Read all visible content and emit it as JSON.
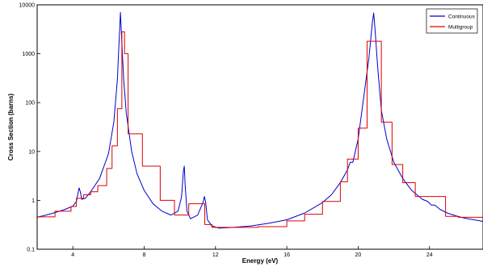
{
  "chart_data": {
    "type": "line",
    "xlabel": "Energy (eV)",
    "ylabel": "Cross Section (barns)",
    "xlim": [
      2,
      27
    ],
    "ylim": [
      0.1,
      10000
    ],
    "yscale": "log",
    "x_ticks": [
      4,
      8,
      12,
      16,
      20,
      24
    ],
    "x_tick_labels": [
      "4",
      "8",
      "12",
      "16",
      "20",
      "24"
    ],
    "y_ticks": [
      0.1,
      1,
      10,
      100,
      1000,
      10000
    ],
    "y_tick_labels": [
      "0.1",
      "1",
      "10",
      "100",
      "1000",
      "10000"
    ],
    "grid": false,
    "legend_position": "top-right",
    "series": [
      {
        "name": "Continuous",
        "color": "#0000cc",
        "style": "line",
        "x": [
          2.0,
          2.5,
          3.0,
          3.5,
          4.0,
          4.2,
          4.35,
          4.42,
          4.5,
          4.7,
          5.0,
          5.5,
          6.0,
          6.3,
          6.5,
          6.6,
          6.67,
          6.74,
          6.85,
          7.0,
          7.3,
          7.6,
          8.0,
          8.5,
          9.0,
          9.5,
          9.9,
          10.1,
          10.2,
          10.25,
          10.3,
          10.4,
          10.6,
          11.0,
          11.3,
          11.38,
          11.45,
          11.55,
          11.8,
          12.2,
          13.0,
          14.0,
          15.0,
          16.0,
          17.0,
          18.0,
          18.5,
          19.0,
          19.4,
          19.55,
          19.7,
          20.0,
          20.3,
          20.6,
          20.8,
          20.87,
          20.95,
          21.1,
          21.3,
          21.6,
          22.0,
          22.5,
          23.0,
          23.6,
          23.9,
          24.1,
          24.3,
          24.6,
          25.0,
          25.5,
          26.0,
          26.5,
          27.0
        ],
        "y": [
          0.45,
          0.5,
          0.56,
          0.64,
          0.76,
          0.95,
          1.8,
          1.5,
          1.05,
          1.1,
          1.5,
          2.8,
          9.0,
          40.0,
          300.0,
          2000.0,
          7000.0,
          2000.0,
          300.0,
          60.0,
          10.0,
          3.5,
          1.6,
          0.85,
          0.6,
          0.5,
          0.6,
          1.2,
          4.0,
          5.0,
          2.0,
          0.6,
          0.42,
          0.5,
          0.9,
          1.2,
          0.9,
          0.4,
          0.3,
          0.27,
          0.28,
          0.3,
          0.34,
          0.4,
          0.55,
          0.9,
          1.3,
          2.3,
          4.2,
          6.0,
          6.0,
          18.0,
          120.0,
          800.0,
          4500.0,
          6800.0,
          3000.0,
          500.0,
          70.0,
          18.0,
          6.0,
          2.8,
          1.6,
          1.05,
          0.95,
          0.8,
          0.8,
          0.65,
          0.55,
          0.48,
          0.43,
          0.4,
          0.37
        ]
      },
      {
        "name": "Multigroup",
        "color": "#dd0000",
        "style": "step",
        "edges": [
          2.0,
          3.0,
          3.9,
          4.2,
          4.6,
          5.0,
          5.4,
          5.9,
          6.2,
          6.5,
          6.75,
          6.9,
          7.1,
          7.9,
          8.9,
          9.7,
          10.5,
          11.4,
          11.8,
          12.2,
          14.4,
          16.0,
          17.0,
          18.0,
          19.0,
          19.4,
          20.0,
          20.5,
          20.9,
          21.3,
          21.9,
          22.5,
          23.2,
          24.0,
          24.9,
          25.6,
          27.0
        ],
        "values": [
          0.46,
          0.6,
          0.75,
          1.1,
          1.3,
          1.5,
          2.0,
          4.5,
          13.0,
          75.0,
          2800.0,
          1000.0,
          23.0,
          5.0,
          1.0,
          0.5,
          0.85,
          0.32,
          0.28,
          0.28,
          0.29,
          0.38,
          0.52,
          0.95,
          2.4,
          7.0,
          30.0,
          1800.0,
          1800.0,
          40.0,
          5.4,
          2.3,
          1.2,
          1.2,
          0.47,
          0.45
        ]
      }
    ]
  }
}
